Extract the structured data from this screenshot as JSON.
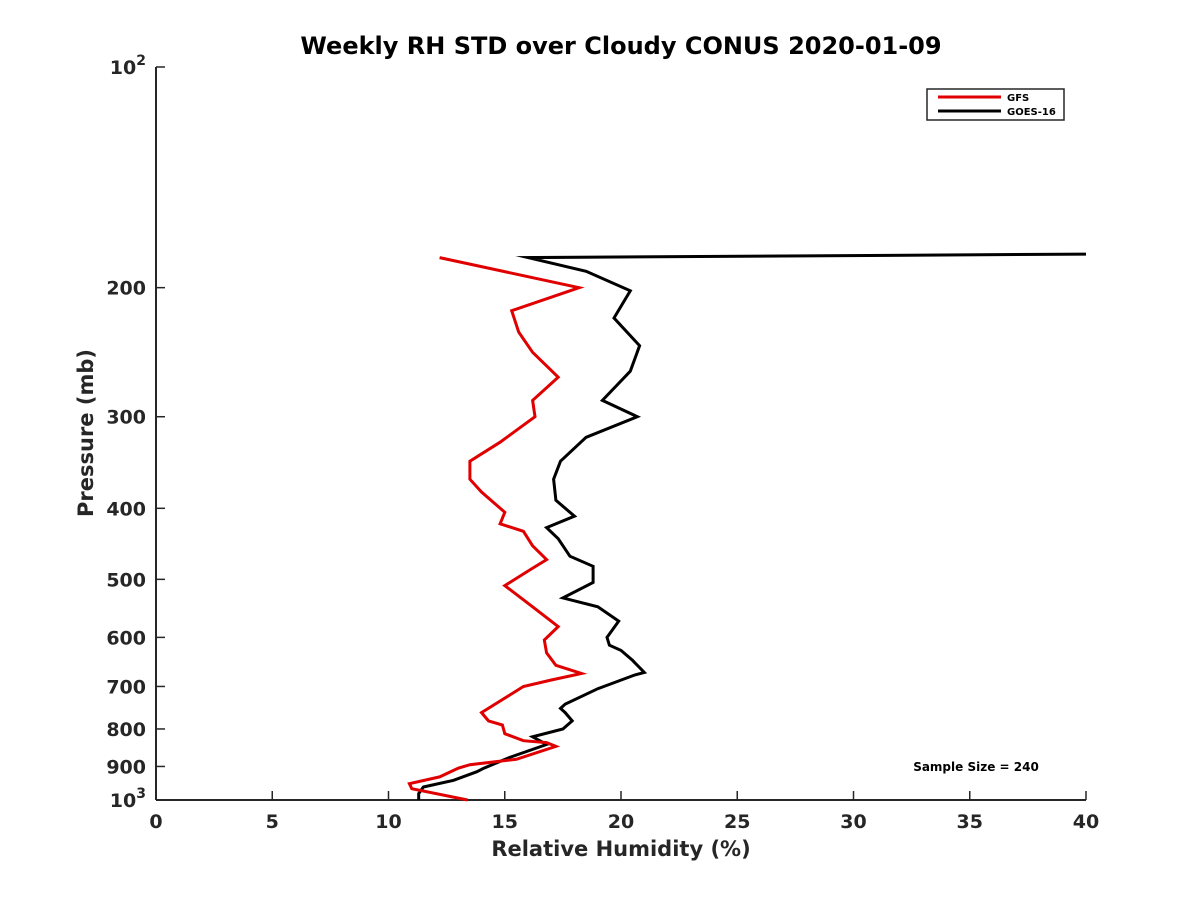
{
  "chart_data": {
    "type": "line",
    "title": "Weekly RH STD over Cloudy CONUS 2020-01-09",
    "xlabel": "Relative Humidity (%)",
    "ylabel": "Pressure (mb)",
    "xlim": [
      0,
      40
    ],
    "ylim": [
      100,
      1000
    ],
    "y_scale": "log",
    "y_reversed": true,
    "grid": false,
    "legend_position": "top-right",
    "xticks": [
      "0",
      "5",
      "10",
      "15",
      "20",
      "25",
      "30",
      "35",
      "40"
    ],
    "yticks": [
      {
        "value": 100,
        "base": "10",
        "exp": "2"
      },
      {
        "value": 200,
        "label": "200"
      },
      {
        "value": 300,
        "label": "300"
      },
      {
        "value": 400,
        "label": "400"
      },
      {
        "value": 500,
        "label": "500"
      },
      {
        "value": 600,
        "label": "600"
      },
      {
        "value": 700,
        "label": "700"
      },
      {
        "value": 800,
        "label": "800"
      },
      {
        "value": 900,
        "label": "900"
      },
      {
        "value": 1000,
        "base": "10",
        "exp": "3"
      }
    ],
    "annotation": "Sample Size = 240",
    "series": [
      {
        "name": "GFS",
        "color": "#e00000",
        "x": [
          13.4,
          11.0,
          10.9,
          12.2,
          13.0,
          13.5,
          15.5,
          17.2,
          16.8,
          15.8,
          15.0,
          14.9,
          14.3,
          14.0,
          15.8,
          17.0,
          18.3,
          17.2,
          16.8,
          16.7,
          17.3,
          16.2,
          15.0,
          16.1,
          16.8,
          16.2,
          15.8,
          14.8,
          15.0,
          14.0,
          13.5,
          13.5,
          14.8,
          16.3,
          16.2,
          17.3,
          16.2,
          15.6,
          15.3,
          18.2,
          12.2
        ],
        "y": [
          1000,
          965,
          950,
          930,
          905,
          895,
          880,
          845,
          835,
          830,
          812,
          790,
          780,
          760,
          700,
          686,
          672,
          655,
          630,
          605,
          580,
          545,
          510,
          485,
          470,
          450,
          430,
          420,
          405,
          380,
          365,
          345,
          325,
          300,
          285,
          265,
          245,
          230,
          215,
          200,
          182
        ]
      },
      {
        "name": "GOES-16",
        "color": "#000000",
        "x": [
          11.3,
          11.3,
          11.5,
          12.8,
          13.8,
          14.1,
          15.2,
          16.8,
          16.2,
          17.5,
          17.9,
          17.6,
          17.4,
          17.6,
          19.0,
          20.6,
          21.0,
          20.5,
          20.0,
          19.5,
          19.4,
          19.9,
          19.0,
          17.5,
          18.8,
          18.8,
          17.8,
          17.3,
          16.8,
          18.0,
          17.2,
          17.1,
          17.4,
          18.5,
          20.7,
          19.2,
          20.4,
          20.8,
          19.7,
          20.4,
          18.5,
          16.0,
          40.0
        ],
        "y": [
          1000,
          980,
          960,
          940,
          915,
          905,
          875,
          840,
          820,
          800,
          780,
          760,
          750,
          740,
          705,
          675,
          670,
          645,
          625,
          615,
          600,
          570,
          545,
          530,
          505,
          480,
          465,
          440,
          425,
          410,
          390,
          365,
          345,
          320,
          300,
          285,
          260,
          240,
          220,
          202,
          190,
          182,
          180
        ]
      }
    ]
  }
}
